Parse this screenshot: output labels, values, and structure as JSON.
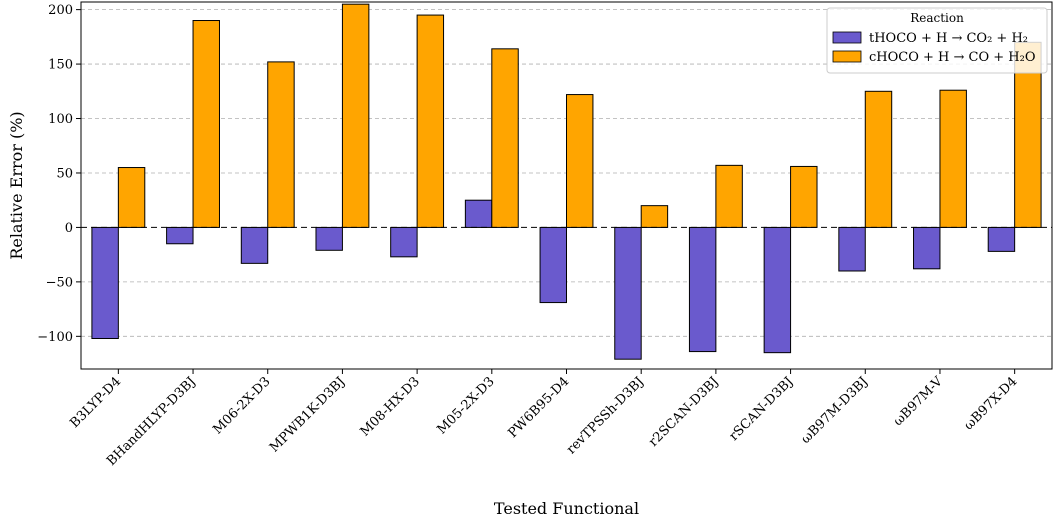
{
  "chart_data": {
    "type": "bar",
    "xlabel": "Tested Functional",
    "ylabel": "Relative Error (%)",
    "ylim": [
      -130,
      207
    ],
    "yticks": [
      -100,
      -50,
      0,
      50,
      100,
      150,
      200
    ],
    "ytick_labels": [
      "−100",
      "−50",
      "0",
      "50",
      "100",
      "150",
      "200"
    ],
    "grid": "y-dashed",
    "zero_line": "dashed",
    "legend": {
      "title": "Reaction",
      "placement": "top-right"
    },
    "categories": [
      "B3LYP-D4",
      "BHandHLYP-D3BJ",
      "M06-2X-D3",
      "MPWB1K-D3BJ",
      "M08-HX-D3",
      "M05-2X-D3",
      "PW6B95-D4",
      "revTPSSh-D3BJ",
      "r2SCAN-D3BJ",
      "rSCAN-D3BJ",
      "ωB97M-D3BJ",
      "ωB97M-V",
      "ωB97X-D4"
    ],
    "series": [
      {
        "name": "tHOCO + H → CO₂ + H₂",
        "color": "#6a5acd",
        "values": [
          -102,
          -15,
          -33,
          -21,
          -27,
          25,
          -69,
          -121,
          -114,
          -115,
          -40,
          -38,
          -22
        ]
      },
      {
        "name": "cHOCO + H → CO + H₂O",
        "color": "#ffa500",
        "values": [
          55,
          190,
          152,
          205,
          195,
          164,
          122,
          20,
          57,
          56,
          125,
          126,
          170
        ]
      }
    ]
  }
}
